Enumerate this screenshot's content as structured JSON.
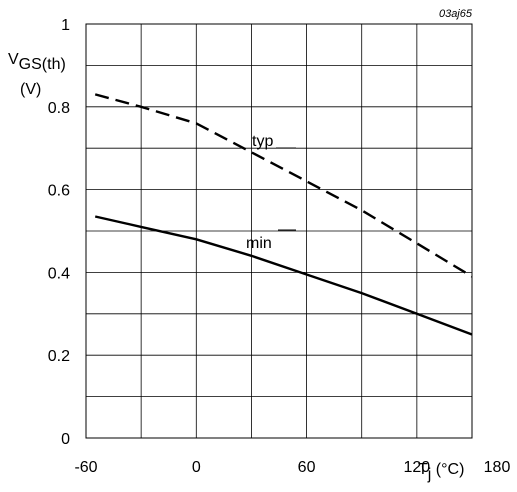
{
  "figure_id": "03aj65",
  "chart_data": {
    "type": "line",
    "ylabel": {
      "symbol": "V",
      "subscript": "GS(th)",
      "unit": "(V)"
    },
    "xlabel": {
      "symbol": "T",
      "subscript": "j",
      "unit": " (°C)"
    },
    "xlim": [
      -60,
      150
    ],
    "ylim": [
      0,
      1
    ],
    "x_ticks": [
      "-60",
      "0",
      "60",
      "120",
      "180"
    ],
    "y_ticks": [
      "0",
      "0.2",
      "0.4",
      "0.6",
      "0.8",
      "1"
    ],
    "grid": true,
    "series": [
      {
        "name": "typ",
        "style": "dashed",
        "x": [
          -55,
          -30,
          0,
          30,
          60,
          90,
          120,
          150
        ],
        "y": [
          0.83,
          0.8,
          0.76,
          0.69,
          0.62,
          0.55,
          0.47,
          0.39
        ]
      },
      {
        "name": "min",
        "style": "solid",
        "x": [
          -55,
          -30,
          0,
          30,
          60,
          90,
          120,
          150
        ],
        "y": [
          0.535,
          0.51,
          0.48,
          0.44,
          0.395,
          0.35,
          0.3,
          0.25
        ]
      }
    ]
  }
}
